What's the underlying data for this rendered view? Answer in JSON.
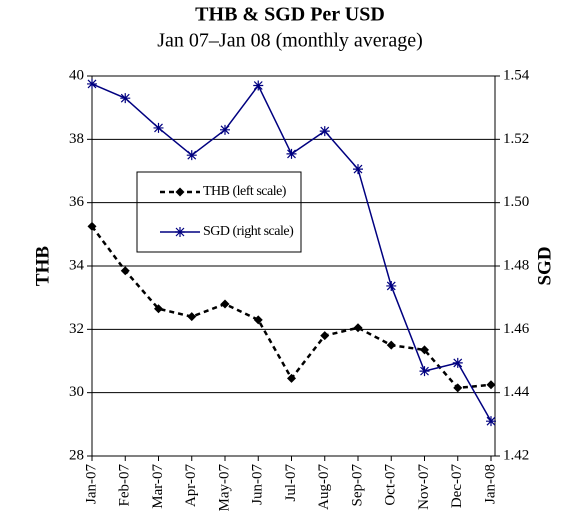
{
  "chart_data": {
    "type": "line",
    "title": "THB & SGD Per USD",
    "subtitle": "Jan 07–Jan 08 (monthly average)",
    "y_label": "THB",
    "y2_label": "SGD",
    "categories": [
      "Jan-07",
      "Feb-07",
      "Mar-07",
      "Apr-07",
      "May-07",
      "Jun-07",
      "Jul-07",
      "Aug-07",
      "Sep-07",
      "Oct-07",
      "Nov-07",
      "Dec-07",
      "Jan-08"
    ],
    "series": [
      {
        "name": "THB (left scale)",
        "color": "#000000",
        "axis": "y",
        "marker": "diamond",
        "dash": true,
        "values": [
          35.25,
          33.85,
          32.65,
          32.4,
          32.8,
          32.3,
          30.45,
          31.8,
          32.05,
          31.5,
          31.35,
          30.15,
          30.25
        ]
      },
      {
        "name": "SGD (right scale)",
        "color": "#000080",
        "axis": "y2",
        "marker": "star",
        "dash": false,
        "values": [
          1.5375,
          1.533,
          1.5236,
          1.515,
          1.523,
          1.537,
          1.5154,
          1.5226,
          1.5106,
          1.4737,
          1.4468,
          1.4494,
          1.431
        ]
      }
    ],
    "ylim": [
      28,
      40
    ],
    "yticks": [
      28,
      30,
      32,
      34,
      36,
      38,
      40
    ],
    "y2lim": [
      1.42,
      1.54
    ],
    "y2ticks": [
      1.42,
      1.44,
      1.46,
      1.48,
      {
        "value": 1.5,
        "label": "1.50"
      },
      1.52,
      1.54
    ],
    "grid": true
  }
}
